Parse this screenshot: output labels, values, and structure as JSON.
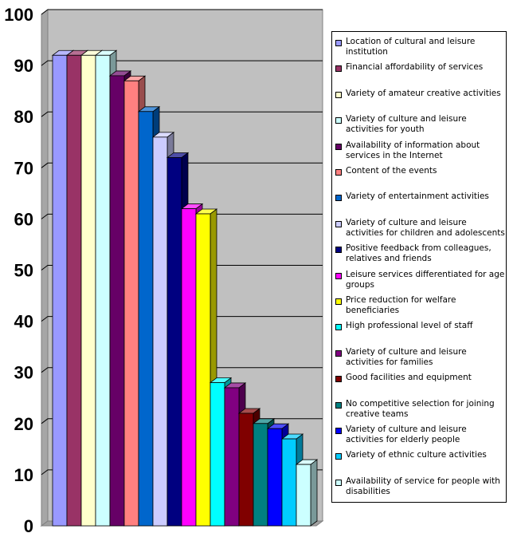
{
  "chart_data": {
    "type": "bar",
    "ylim": [
      0,
      100
    ],
    "yticks": [
      "0",
      "10",
      "20",
      "30",
      "40",
      "50",
      "60",
      "70",
      "80",
      "90",
      "100"
    ],
    "grid": true,
    "legend_position": "right",
    "plot_background": "#c0c0c0",
    "series": [
      {
        "name": "Location of cultural and leisure institution",
        "value": 92,
        "color": "#9999ff"
      },
      {
        "name": "Financial affordability of services",
        "value": 92,
        "color": "#993366"
      },
      {
        "name": "Variety of amateur creative activities",
        "value": 92,
        "color": "#ffffcc"
      },
      {
        "name": "Variety of culture and leisure activities for youth",
        "value": 92,
        "color": "#ccffff"
      },
      {
        "name": "Availability of information about services in the Internet",
        "value": 88,
        "color": "#660066"
      },
      {
        "name": "Content of the events",
        "value": 87,
        "color": "#ff8080"
      },
      {
        "name": "Variety of entertainment activities",
        "value": 81,
        "color": "#0066cc"
      },
      {
        "name": "Variety of culture and leisure activities for children and adolescents",
        "value": 76,
        "color": "#ccccff"
      },
      {
        "name": "Positive feedback from colleagues, relatives and friends",
        "value": 72,
        "color": "#000080"
      },
      {
        "name": "Leisure services differentiated for age groups",
        "value": 62,
        "color": "#ff00ff"
      },
      {
        "name": "Price reduction for welfare beneficiaries",
        "value": 61,
        "color": "#ffff00"
      },
      {
        "name": "High professional level of staff",
        "value": 28,
        "color": "#00ffff"
      },
      {
        "name": "Variety of culture and leisure activities for families",
        "value": 27,
        "color": "#800080"
      },
      {
        "name": "Good facilities and equipment",
        "value": 22,
        "color": "#800000"
      },
      {
        "name": "No competitive selection for joining creative teams",
        "value": 20,
        "color": "#008080"
      },
      {
        "name": "Variety of culture and leisure activities for elderly people",
        "value": 19,
        "color": "#0000ff"
      },
      {
        "name": "Variety of ethnic culture activities",
        "value": 17,
        "color": "#00ccff"
      },
      {
        "name": "Availability of service for people with disabilities",
        "value": 12,
        "color": "#ccffff"
      }
    ]
  }
}
